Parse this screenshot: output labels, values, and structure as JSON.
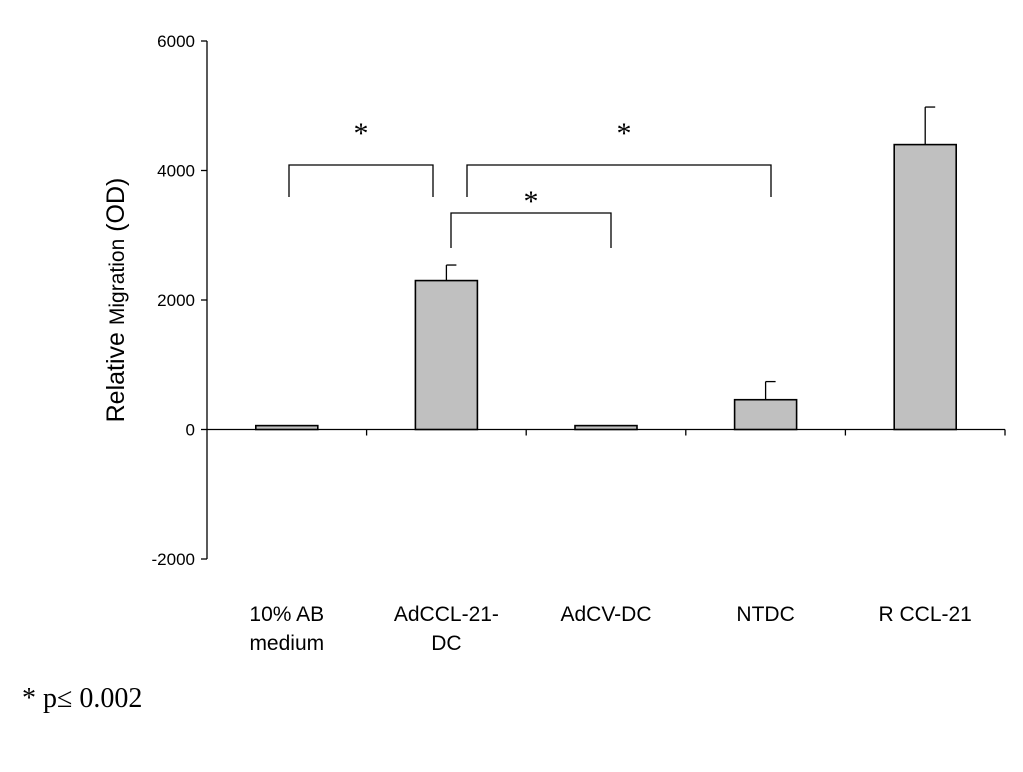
{
  "chart_data": {
    "type": "bar",
    "categories": [
      [
        "10% AB",
        "medium"
      ],
      [
        "AdCCL-21-",
        "DC"
      ],
      [
        "AdCV-DC"
      ],
      [
        "NTDC"
      ],
      [
        "R CCL-21"
      ]
    ],
    "values": [
      60,
      2300,
      60,
      460,
      4400
    ],
    "errors": [
      0,
      240,
      0,
      280,
      580
    ],
    "ylabel": {
      "main": "Relative ",
      "small": "Migration",
      "unit": " (OD)"
    },
    "ylim": [
      -2000,
      6000
    ],
    "yticks": [
      6000,
      4000,
      2000,
      0,
      -2000
    ],
    "bar_color": "#c0c0c0",
    "significance": [
      {
        "from": 0,
        "to": 1,
        "label": "*"
      },
      {
        "from": 1,
        "to": 2,
        "label": "*"
      },
      {
        "from": 1,
        "to": 3,
        "label": "*"
      }
    ],
    "footnote": {
      "symbol": "*",
      "text": " p≤ 0.002"
    }
  }
}
